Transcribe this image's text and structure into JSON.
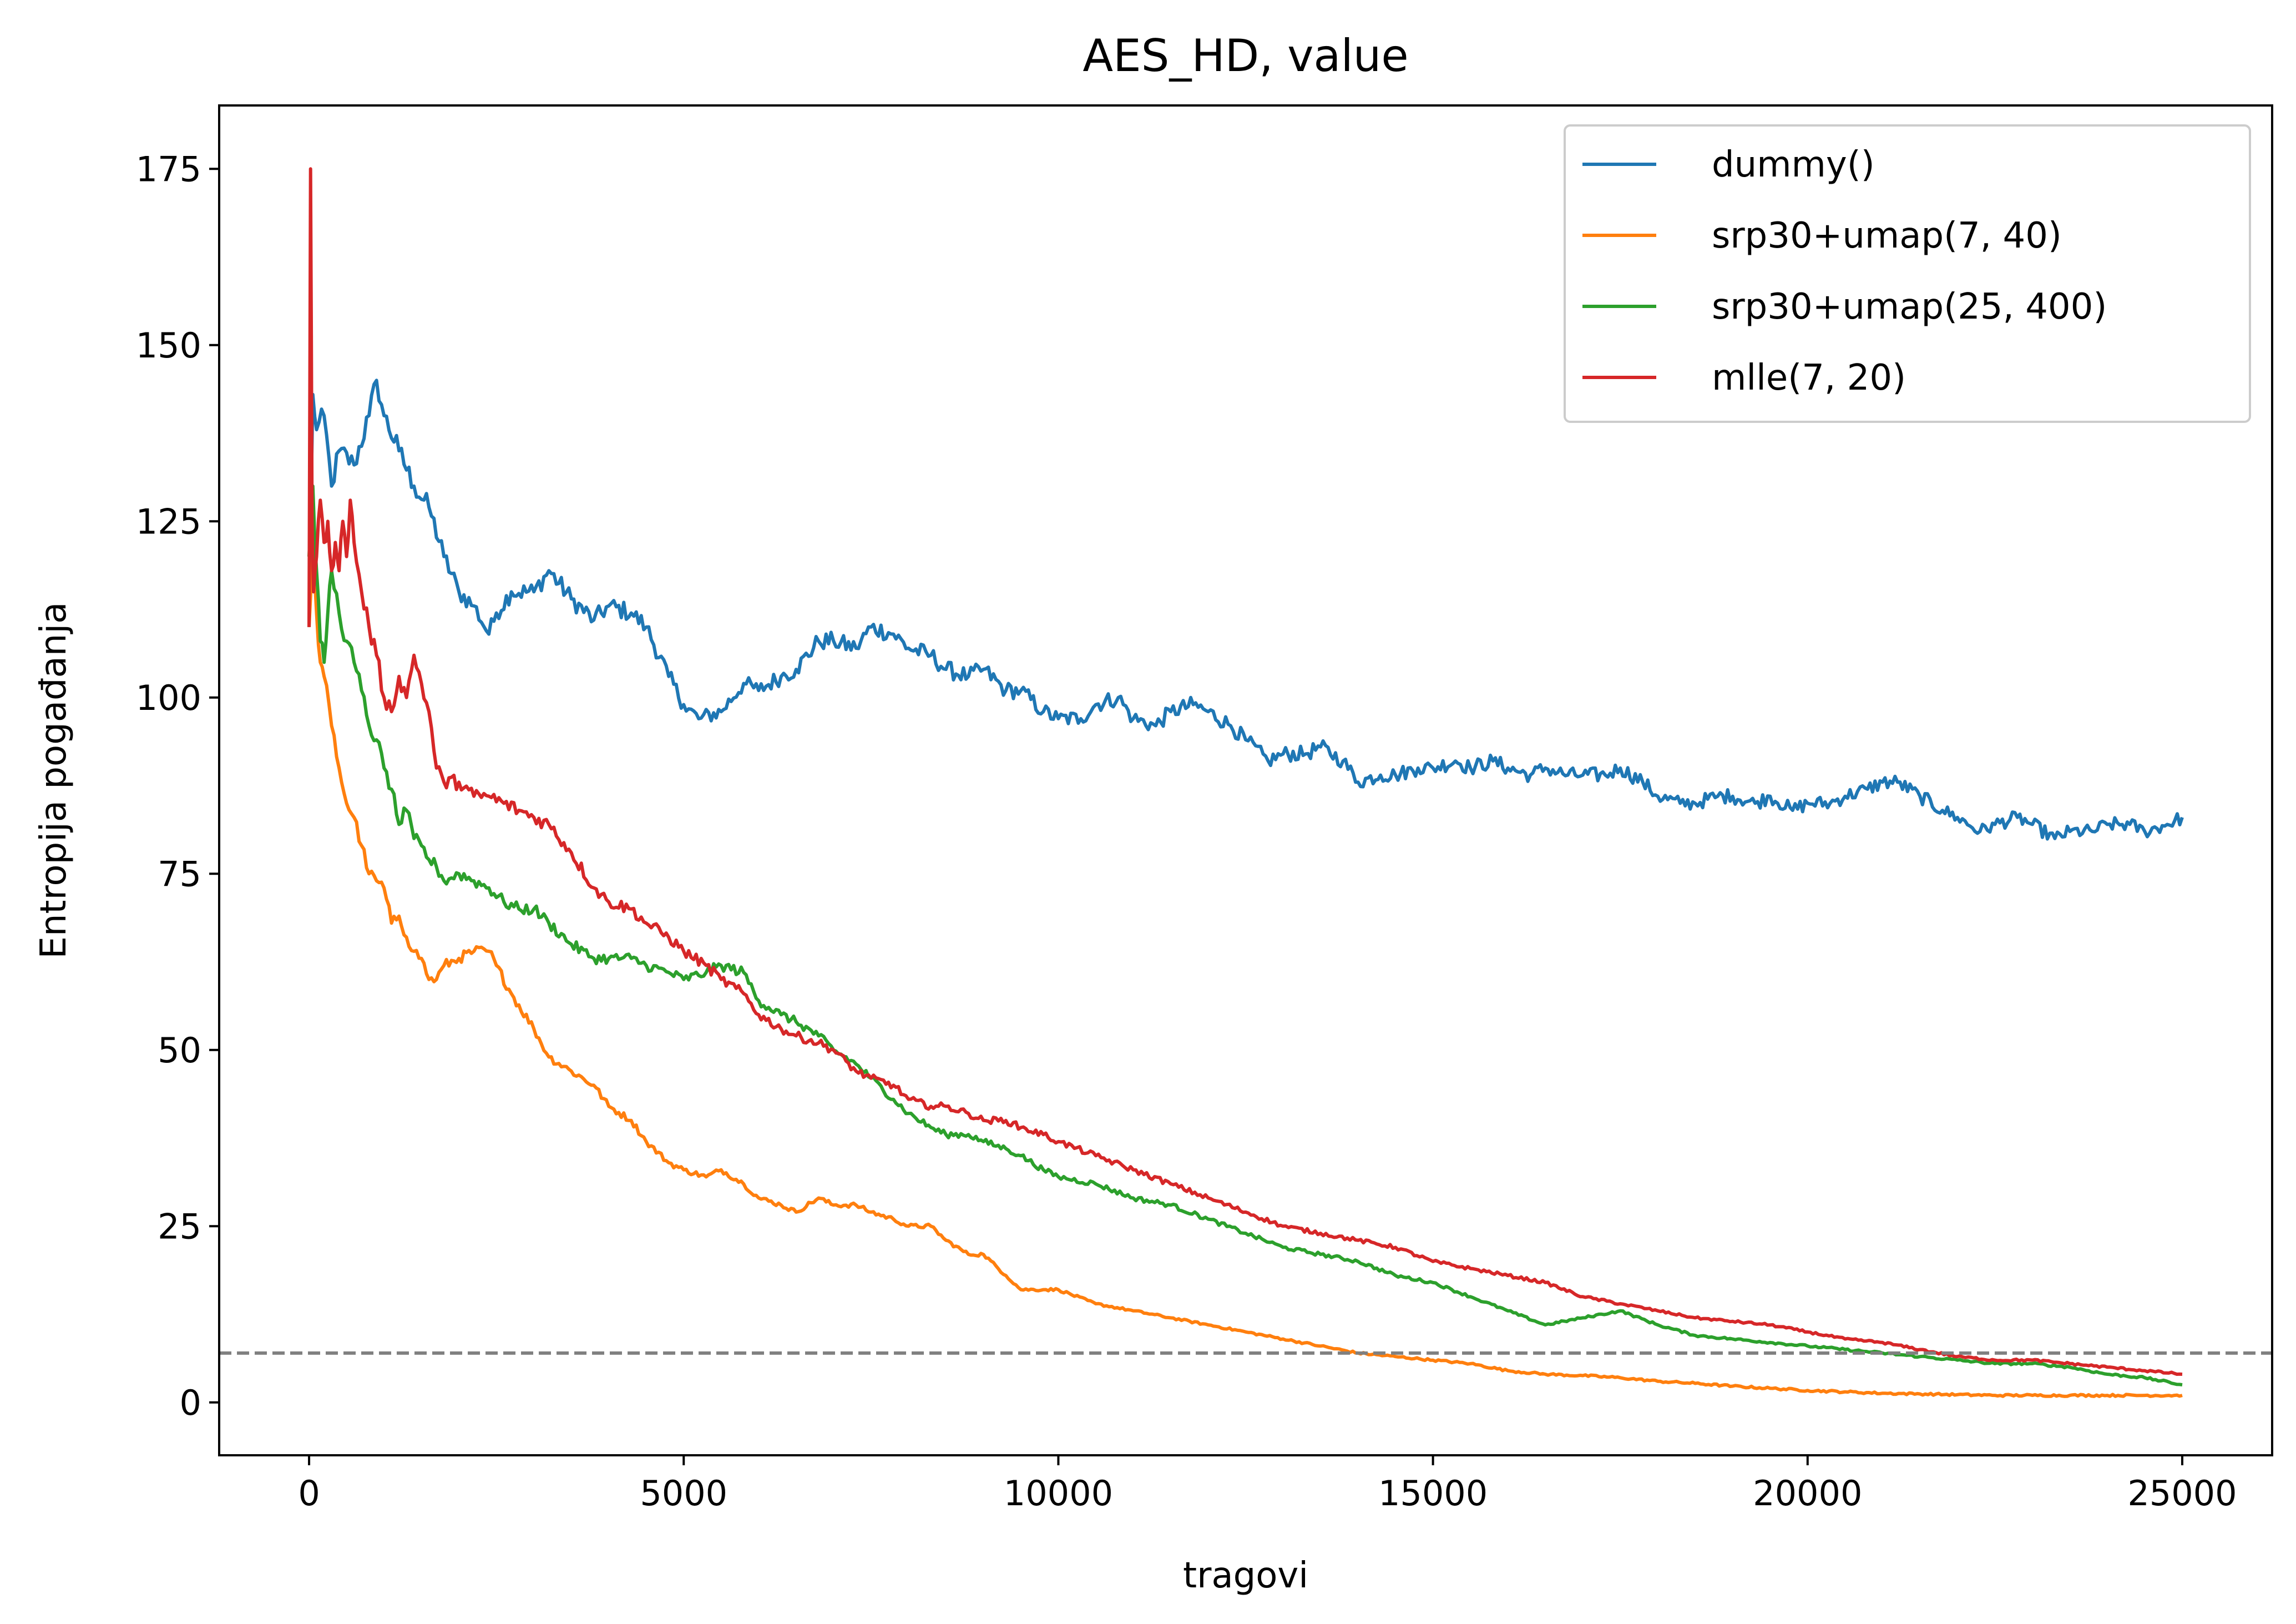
{
  "chart_data": {
    "type": "line",
    "title": "AES_HD, value",
    "xlabel": "tragovi",
    "ylabel": "Entropija pogađanja",
    "xlim": [
      -1200,
      26200
    ],
    "ylim": [
      -7.5,
      184
    ],
    "xticks": [
      0,
      5000,
      10000,
      15000,
      20000,
      25000
    ],
    "yticks": [
      0,
      25,
      50,
      75,
      100,
      125,
      150,
      175
    ],
    "grid": false,
    "legend_position": "top-right",
    "reference_line": {
      "y": 7,
      "style": "dashed",
      "color": "#808080"
    },
    "series": [
      {
        "name": "dummy()",
        "color": "#1f77b4",
        "x": [
          0,
          50,
          100,
          200,
          300,
          400,
          600,
          800,
          900,
          1000,
          1200,
          1400,
          1600,
          1800,
          2000,
          2200,
          2400,
          2500,
          2700,
          3000,
          3200,
          3500,
          3800,
          4000,
          4300,
          4500,
          4800,
          5000,
          5200,
          5500,
          5800,
          6000,
          6300,
          6500,
          6800,
          7000,
          7300,
          7500,
          7800,
          8000,
          8300,
          8500,
          8800,
          9000,
          9300,
          9500,
          9800,
          10000,
          10300,
          10500,
          10800,
          11000,
          11300,
          11500,
          11800,
          12000,
          12300,
          12500,
          12800,
          13000,
          13300,
          13500,
          13800,
          14000,
          14300,
          14500,
          14800,
          15000,
          15300,
          15500,
          15800,
          16000,
          16300,
          16500,
          16800,
          17000,
          17300,
          17500,
          17800,
          18000,
          18300,
          18500,
          18800,
          19000,
          19300,
          19500,
          19800,
          20000,
          20300,
          20500,
          20800,
          21000,
          21200,
          21500,
          21800,
          22000,
          22300,
          22500,
          22800,
          23000,
          23300,
          23500,
          23800,
          24000,
          24300,
          24500,
          24800,
          25000
        ],
        "y": [
          110,
          143,
          138,
          140,
          130,
          135,
          133,
          140,
          145,
          140,
          135,
          130,
          127,
          120,
          115,
          113,
          109,
          112,
          115,
          115,
          118,
          114,
          111,
          113,
          112,
          110,
          103,
          99,
          97,
          98,
          102,
          101,
          103,
          104,
          108,
          108,
          107,
          110,
          109,
          107,
          106,
          104,
          103,
          104,
          101,
          101,
          98,
          97,
          97,
          99,
          100,
          97,
          96,
          98,
          99,
          98,
          96,
          94,
          91,
          92,
          92,
          93,
          91,
          88,
          89,
          89,
          90,
          90,
          91,
          90,
          91,
          90,
          89,
          90,
          89,
          89,
          89,
          90,
          88,
          86,
          85,
          85,
          86,
          86,
          85,
          86,
          84,
          85,
          85,
          86,
          87,
          88,
          88,
          86,
          84,
          83,
          81,
          82,
          83,
          82,
          80,
          81,
          81,
          82,
          82,
          81,
          82,
          83
        ]
      },
      {
        "name": "srp30+umap(7, 40)",
        "color": "#ff7f0e",
        "x": [
          0,
          50,
          100,
          150,
          200,
          300,
          400,
          500,
          600,
          700,
          800,
          900,
          1000,
          1100,
          1200,
          1300,
          1400,
          1500,
          1600,
          1700,
          1800,
          2000,
          2200,
          2400,
          2500,
          2700,
          3000,
          3200,
          3500,
          3800,
          4000,
          4300,
          4500,
          4800,
          5000,
          5300,
          5500,
          5800,
          6000,
          6300,
          6500,
          6800,
          7000,
          7300,
          7500,
          7800,
          8000,
          8300,
          8500,
          8800,
          9000,
          9300,
          9500,
          9800,
          10000,
          10500,
          11000,
          11500,
          12000,
          12500,
          13000,
          13500,
          14000,
          14500,
          15000,
          15500,
          16000,
          16500,
          17000,
          17500,
          18000,
          18500,
          19000,
          19500,
          20000,
          20500,
          21000,
          21500,
          22000,
          22500,
          23000,
          23500,
          24000,
          24500,
          25000
        ],
        "y": [
          110,
          120,
          112,
          105,
          103,
          96,
          90,
          85,
          83,
          79,
          75,
          74,
          73,
          68,
          69,
          66,
          64,
          63,
          60,
          60,
          62,
          63,
          64,
          64,
          62,
          58,
          53,
          49,
          47,
          45,
          42,
          40,
          37,
          34,
          33,
          32,
          33,
          31,
          29,
          28,
          27,
          29,
          28,
          28,
          27,
          26,
          25,
          25,
          23,
          21,
          21,
          18,
          16,
          16,
          16,
          14,
          13,
          12,
          11,
          10,
          9,
          8,
          7,
          6.5,
          6,
          5.5,
          4.5,
          4,
          3.8,
          3.5,
          3,
          2.7,
          2.3,
          2,
          1.7,
          1.5,
          1.3,
          1.2,
          1.1,
          1.0,
          1.0,
          1.0,
          1.0,
          1.0,
          1.0
        ]
      },
      {
        "name": "srp30+umap(25, 400)",
        "color": "#2ca02c",
        "x": [
          0,
          50,
          100,
          150,
          200,
          250,
          300,
          400,
          500,
          600,
          700,
          800,
          900,
          1000,
          1100,
          1200,
          1300,
          1400,
          1500,
          1600,
          1700,
          1800,
          2000,
          2200,
          2400,
          2600,
          2800,
          3000,
          3200,
          3500,
          3800,
          4000,
          4300,
          4500,
          4800,
          5000,
          5300,
          5500,
          5800,
          6000,
          6300,
          6500,
          6800,
          7000,
          7300,
          7500,
          7800,
          8000,
          8300,
          8500,
          8800,
          9000,
          9300,
          9500,
          9800,
          10000,
          10500,
          11000,
          11500,
          12000,
          12500,
          13000,
          13500,
          14000,
          14500,
          15000,
          15500,
          16000,
          16500,
          17000,
          17500,
          18000,
          18500,
          19000,
          19500,
          20000,
          20500,
          21000,
          21500,
          22000,
          22500,
          23000,
          23500,
          24000,
          24500,
          25000
        ],
        "y": [
          120,
          130,
          118,
          108,
          105,
          112,
          118,
          112,
          108,
          105,
          101,
          96,
          94,
          90,
          87,
          82,
          84,
          80,
          79,
          77,
          76,
          74,
          75,
          74,
          73,
          71,
          70,
          70,
          68,
          65,
          63,
          63,
          63,
          62,
          61,
          60,
          61,
          62,
          61,
          57,
          55,
          54,
          52,
          50,
          48,
          46,
          43,
          41,
          39,
          38,
          38,
          37,
          36,
          35,
          33,
          32,
          31,
          29,
          28,
          26,
          24,
          22,
          21,
          20,
          18,
          17,
          15,
          13,
          11,
          12,
          13,
          11,
          9.5,
          9,
          8.5,
          8,
          7.5,
          7,
          6.5,
          6,
          5.5,
          5.5,
          5,
          4,
          3.5,
          2.5
        ]
      },
      {
        "name": "mlle(7, 20)",
        "color": "#d62728",
        "x": [
          0,
          20,
          40,
          60,
          100,
          150,
          200,
          250,
          300,
          350,
          400,
          450,
          500,
          550,
          600,
          700,
          800,
          900,
          1000,
          1100,
          1200,
          1300,
          1400,
          1500,
          1600,
          1700,
          1800,
          2000,
          2200,
          2400,
          2600,
          2800,
          3000,
          3200,
          3500,
          3800,
          4000,
          4300,
          4500,
          4800,
          5000,
          5300,
          5500,
          5800,
          6000,
          6300,
          6500,
          6800,
          7000,
          7300,
          7500,
          7800,
          8000,
          8300,
          8500,
          8800,
          9000,
          9300,
          9500,
          9800,
          10000,
          10500,
          11000,
          11500,
          12000,
          12500,
          13000,
          13500,
          14000,
          14500,
          15000,
          15500,
          16000,
          16500,
          17000,
          17500,
          18000,
          18500,
          19000,
          19500,
          20000,
          20500,
          21000,
          21500,
          22000,
          22500,
          23000,
          23500,
          24000,
          24500,
          25000
        ],
        "y": [
          110,
          175,
          125,
          115,
          120,
          128,
          122,
          125,
          118,
          122,
          118,
          125,
          120,
          128,
          122,
          115,
          110,
          106,
          100,
          98,
          103,
          100,
          106,
          102,
          98,
          90,
          88,
          88,
          86,
          86,
          85,
          84,
          83,
          82,
          78,
          73,
          71,
          70,
          68,
          66,
          64,
          62,
          60,
          58,
          55,
          53,
          52,
          51,
          50,
          47,
          46,
          45,
          43,
          42,
          42,
          41,
          40,
          40,
          39,
          38,
          37,
          35,
          33,
          31,
          29,
          27,
          25,
          24,
          23,
          22,
          20,
          19,
          18,
          17,
          15,
          14,
          13,
          12,
          11.5,
          11,
          10,
          9,
          8.5,
          7.5,
          6.5,
          6,
          6,
          5.5,
          5,
          4.5,
          4
        ]
      }
    ]
  }
}
